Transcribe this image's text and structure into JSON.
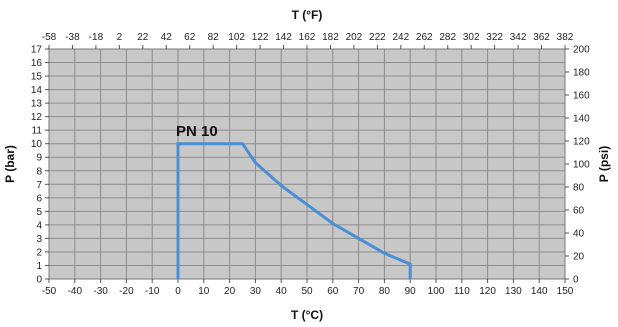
{
  "chart_data": {
    "type": "line",
    "annotation": "PN 10",
    "x_bottom": {
      "label": "T (°C)",
      "range": [
        -50,
        150
      ],
      "ticks": [
        -50,
        -40,
        -30,
        -20,
        -10,
        0,
        10,
        20,
        30,
        40,
        50,
        60,
        70,
        80,
        90,
        100,
        110,
        120,
        130,
        140,
        150
      ]
    },
    "x_top": {
      "label": "T (°F)",
      "range": [
        -58,
        382
      ],
      "ticks": [
        -58,
        -38,
        -18,
        2,
        22,
        42,
        62,
        82,
        102,
        122,
        142,
        162,
        182,
        202,
        222,
        242,
        262,
        282,
        302,
        322,
        342,
        362,
        382
      ]
    },
    "y_left": {
      "label": "P (bar)",
      "range": [
        0,
        17
      ],
      "ticks": [
        0,
        1,
        2,
        3,
        4,
        5,
        6,
        7,
        8,
        9,
        10,
        11,
        12,
        13,
        14,
        15,
        16,
        17
      ]
    },
    "y_right": {
      "label": "P (psi)",
      "range": [
        0,
        200
      ],
      "ticks": [
        0,
        20,
        40,
        60,
        80,
        100,
        120,
        140,
        160,
        180,
        200
      ]
    },
    "grid": true,
    "colors": {
      "plot_background": "#c8c8c8",
      "grid": "#8c8c8c",
      "series": "#4a8fd6"
    },
    "series": [
      {
        "x": [
          0,
          0,
          25,
          30,
          40,
          50,
          60,
          70,
          80,
          90,
          90
        ],
        "y": [
          0,
          10,
          10,
          8.6,
          6.9,
          5.5,
          4.1,
          3.0,
          1.9,
          1.1,
          0
        ]
      }
    ]
  }
}
